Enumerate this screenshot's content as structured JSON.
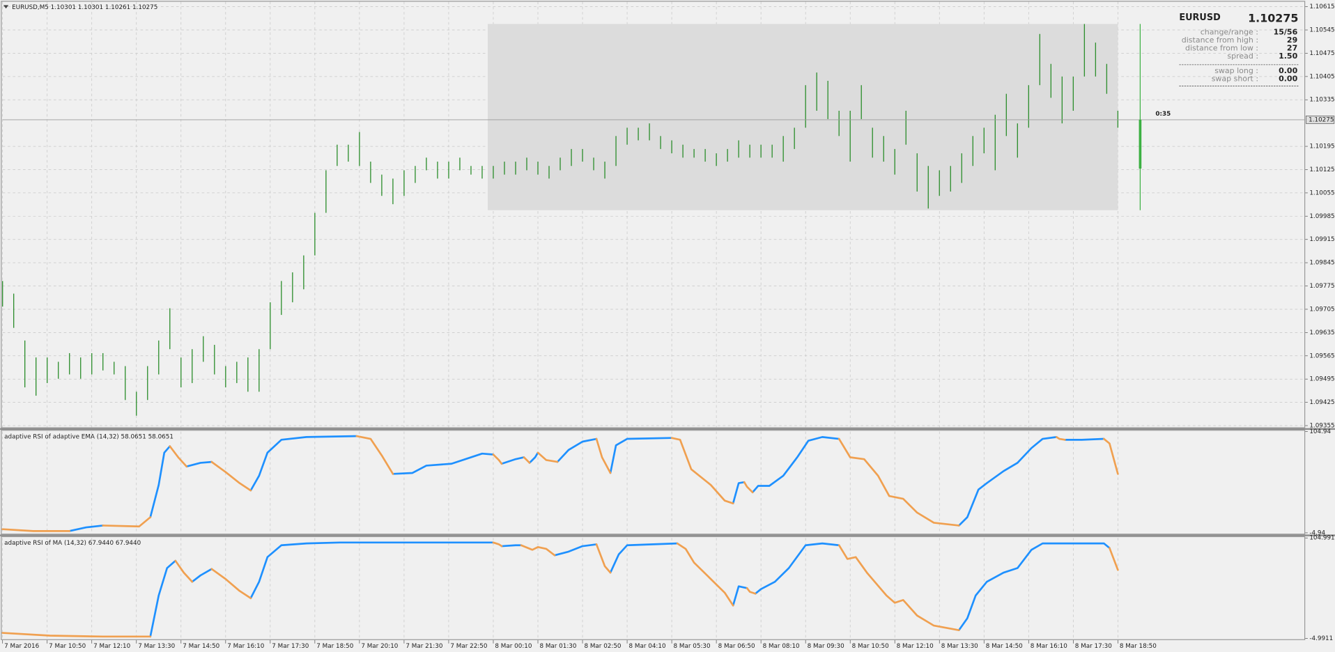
{
  "window_title": "EURUSD,M5 1.10301 1.10301 1.10261 1.10275",
  "info_panel": {
    "symbol": "EURUSD",
    "symbol_color": "#3cb371",
    "rows": [
      {
        "label": "change/range :",
        "value": "15/56",
        "color": "#f08c00"
      },
      {
        "label": "distance from high :",
        "value": "29",
        "color": "#3cb371"
      },
      {
        "label": "distance from low :",
        "value": "27",
        "color": "#3cb371"
      },
      {
        "label": "spread :",
        "value": "1.50",
        "color": "#3cb371"
      },
      {
        "label": "swap long :",
        "value": "0.00",
        "color": "#3cb371"
      },
      {
        "label": "swap short :",
        "value": "0.00",
        "color": "#3cb371"
      }
    ]
  },
  "chart_data": [
    {
      "type": "hilo",
      "color": "#2f8f2f",
      "grid": true,
      "xlim": [
        0,
        467
      ],
      "ylim": [
        1.0935,
        1.1063
      ],
      "yticks": [
        1.10615,
        1.10545,
        1.10475,
        1.10405,
        1.10335,
        1.10195,
        1.10125,
        1.10055,
        1.09985,
        1.09915,
        1.09845,
        1.09775,
        1.09705,
        1.09635,
        1.09565,
        1.09495,
        1.09425,
        1.09355
      ],
      "current_price": 1.10275,
      "timer": "0:35",
      "range_box": {
        "start": 174,
        "end": 400,
        "low": 1.10003,
        "high": 1.10563,
        "color": "#dcdcdc"
      },
      "range_line": {
        "x": 408,
        "low": 1.10003,
        "high": 1.10563,
        "bar_low": 1.10128,
        "bar_high": 1.10275,
        "color": "#3cb043"
      },
      "x": [
        0,
        4,
        8,
        12,
        16,
        20,
        24,
        28,
        32,
        36,
        40,
        44,
        48,
        52,
        56,
        60,
        64,
        68,
        72,
        76,
        80,
        84,
        88,
        92,
        96,
        100,
        104,
        108,
        112,
        116,
        120,
        124,
        128,
        132,
        136,
        140,
        144,
        148,
        152,
        156,
        160,
        164,
        168,
        172,
        176,
        180,
        184,
        188,
        192,
        196,
        200,
        204,
        208,
        212,
        216,
        220,
        224,
        228,
        232,
        236,
        240,
        244,
        248,
        252,
        256,
        260,
        264,
        268,
        272,
        276,
        280,
        284,
        288,
        292,
        296,
        300,
        304,
        308,
        312,
        316,
        320,
        324,
        328,
        332,
        336,
        340,
        344,
        348,
        352,
        356,
        360,
        364,
        368,
        372,
        376,
        380,
        384,
        388,
        392,
        396,
        400
      ],
      "high": [
        1.0979,
        1.09752,
        1.09611,
        1.0956,
        1.0956,
        1.09547,
        1.09573,
        1.0956,
        1.09573,
        1.09573,
        1.09547,
        1.09534,
        1.09457,
        1.09534,
        1.09611,
        1.09708,
        1.0956,
        1.09585,
        1.09624,
        1.09598,
        1.09534,
        1.09547,
        1.0956,
        1.09585,
        1.09726,
        1.0979,
        1.09816,
        1.09867,
        1.09995,
        1.10123,
        1.102,
        1.102,
        1.10238,
        1.10149,
        1.1011,
        1.10098,
        1.10123,
        1.10136,
        1.10161,
        1.10149,
        1.10149,
        1.10161,
        1.10136,
        1.10136,
        1.10136,
        1.10149,
        1.10149,
        1.10161,
        1.10149,
        1.10136,
        1.10161,
        1.10187,
        1.10187,
        1.10161,
        1.10149,
        1.10226,
        1.10251,
        1.10251,
        1.10264,
        1.10226,
        1.10213,
        1.102,
        1.10187,
        1.10187,
        1.10174,
        1.10187,
        1.10213,
        1.102,
        1.102,
        1.102,
        1.10226,
        1.10251,
        1.10379,
        1.10417,
        1.10392,
        1.10302,
        1.10302,
        1.10379,
        1.10251,
        1.10226,
        1.10187,
        1.10302,
        1.10174,
        1.10136,
        1.10123,
        1.10136,
        1.10174,
        1.10226,
        1.10251,
        1.1029,
        1.10353,
        1.10264,
        1.10379,
        1.10533,
        1.10443,
        1.10405,
        1.10405,
        1.10563,
        1.10507,
        1.10443,
        1.10302
      ],
      "low": [
        1.09713,
        1.09649,
        1.0947,
        1.09445,
        1.09483,
        1.09496,
        1.09509,
        1.09496,
        1.09509,
        1.09521,
        1.09509,
        1.09432,
        1.09385,
        1.09432,
        1.09509,
        1.09585,
        1.0947,
        1.09483,
        1.09547,
        1.09509,
        1.0947,
        1.09483,
        1.09457,
        1.09457,
        1.09585,
        1.09688,
        1.09726,
        1.09765,
        1.09867,
        1.09995,
        1.10136,
        1.10149,
        1.10136,
        1.10085,
        1.10046,
        1.10021,
        1.10046,
        1.10085,
        1.10123,
        1.10098,
        1.10098,
        1.10123,
        1.1011,
        1.10098,
        1.10098,
        1.1011,
        1.1011,
        1.10123,
        1.1011,
        1.10098,
        1.10123,
        1.10136,
        1.10149,
        1.10123,
        1.10098,
        1.10136,
        1.102,
        1.10213,
        1.10213,
        1.10187,
        1.10174,
        1.10161,
        1.10161,
        1.10149,
        1.10136,
        1.10149,
        1.10161,
        1.10161,
        1.10161,
        1.10161,
        1.10149,
        1.10187,
        1.10251,
        1.10302,
        1.10277,
        1.10226,
        1.10149,
        1.10277,
        1.10161,
        1.10149,
        1.1011,
        1.102,
        1.10059,
        1.10008,
        1.10046,
        1.10059,
        1.10085,
        1.10136,
        1.10174,
        1.10123,
        1.10226,
        1.10161,
        1.10251,
        1.10379,
        1.10341,
        1.10264,
        1.10302,
        1.10405,
        1.10405,
        1.10353,
        1.10251
      ]
    },
    {
      "type": "line",
      "title": "adaptive RSI of adaptive EMA (14,32) 58.0651 58.0651",
      "grid": true,
      "xlim": [
        0,
        467
      ],
      "ylim": [
        -4.94,
        104.94
      ],
      "yticks": [
        104.94,
        -4.94
      ],
      "x": [
        0,
        11,
        24,
        30,
        36,
        49,
        53,
        56,
        58,
        60,
        63,
        66,
        71,
        75,
        80,
        85,
        89,
        92,
        95,
        100,
        109,
        127,
        132,
        136,
        140,
        147,
        152,
        161,
        167,
        172,
        176,
        178,
        179,
        184,
        187,
        188,
        189,
        191,
        192,
        195,
        199,
        203,
        208,
        213,
        215,
        218,
        220,
        224,
        240,
        243,
        247,
        254,
        259,
        262,
        264,
        266,
        267,
        269,
        271,
        275,
        280,
        285,
        289,
        294,
        300,
        304,
        309,
        314,
        318,
        323,
        328,
        334,
        343,
        346,
        350,
        353,
        359,
        364,
        369,
        373,
        378,
        379,
        381,
        387,
        395,
        397,
        400
      ],
      "series": [
        {
          "color": "#1e90ff",
          "values": [
            null,
            null,
            -3,
            1,
            3,
            null,
            12,
            47,
            82,
            89,
            null,
            67,
            71,
            72,
            null,
            null,
            41,
            57,
            82,
            96,
            99,
            100,
            null,
            null,
            59,
            60,
            68,
            70,
            76,
            81,
            80,
            null,
            70,
            75,
            77,
            null,
            71,
            77,
            82,
            null,
            72,
            85,
            94,
            97,
            null,
            60,
            90,
            97,
            98,
            null,
            null,
            null,
            null,
            27,
            49,
            50,
            null,
            39,
            46,
            46,
            57,
            77,
            95,
            99,
            97,
            null,
            null,
            null,
            null,
            null,
            null,
            null,
            3,
            12,
            42,
            49,
            62,
            71,
            87,
            97,
            99,
            null,
            96,
            96,
            97,
            null,
            null
          ]
        },
        {
          "color": "#f0a050",
          "values": [
            -1,
            -3,
            -3,
            null,
            3,
            2,
            12,
            null,
            null,
            89,
            77,
            67,
            null,
            72,
            61,
            49,
            41,
            null,
            null,
            null,
            null,
            100,
            97,
            79,
            59,
            null,
            null,
            null,
            null,
            null,
            80,
            74,
            70,
            null,
            77,
            74,
            71,
            null,
            82,
            74,
            72,
            null,
            null,
            97,
            77,
            60,
            null,
            null,
            98,
            96,
            64,
            47,
            30,
            27,
            null,
            50,
            45,
            39,
            null,
            null,
            null,
            null,
            null,
            null,
            97,
            77,
            75,
            57,
            35,
            32,
            17,
            6,
            3,
            null,
            null,
            null,
            null,
            null,
            null,
            null,
            99,
            97,
            96,
            null,
            97,
            92,
            59
          ]
        }
      ]
    },
    {
      "type": "line",
      "title": "adaptive RSI of MA (14,32) 67.9440 67.9440",
      "grid": true,
      "xlim": [
        0,
        467
      ],
      "ylim": [
        -4.9911,
        104.9911
      ],
      "yticks": [
        104.9911,
        -4.9911
      ],
      "x": [
        0,
        17,
        36,
        53,
        56,
        59,
        62,
        65,
        68,
        71,
        75,
        80,
        85,
        89,
        92,
        95,
        100,
        109,
        121,
        176,
        178,
        179,
        184,
        186,
        190,
        192,
        195,
        198,
        203,
        208,
        213,
        216,
        218,
        221,
        224,
        242,
        245,
        248,
        254,
        259,
        262,
        264,
        267,
        268,
        270,
        272,
        277,
        282,
        288,
        294,
        300,
        303,
        306,
        310,
        317,
        320,
        323,
        328,
        334,
        343,
        346,
        349,
        353,
        359,
        364,
        369,
        373,
        381,
        395,
        397,
        400
      ],
      "series": [
        {
          "color": "#1e90ff",
          "values": [
            null,
            null,
            null,
            -3,
            42,
            72,
            80,
            null,
            57,
            64,
            71,
            null,
            null,
            39,
            57,
            84,
            97,
            99,
            100,
            100,
            null,
            96,
            97,
            97,
            null,
            null,
            null,
            86,
            90,
            96,
            98,
            null,
            67,
            87,
            97,
            99,
            null,
            null,
            null,
            null,
            31,
            52,
            50,
            null,
            44,
            49,
            57,
            72,
            97,
            99,
            97,
            null,
            null,
            null,
            null,
            null,
            null,
            null,
            null,
            4,
            17,
            42,
            57,
            67,
            72,
            92,
            99,
            99,
            99,
            94,
            null
          ]
        },
        {
          "color": "#f0a050",
          "values": [
            1,
            -2,
            -3,
            -3,
            null,
            null,
            80,
            67,
            57,
            null,
            71,
            60,
            47,
            39,
            null,
            null,
            null,
            null,
            null,
            100,
            98,
            96,
            null,
            97,
            92,
            95,
            93,
            86,
            null,
            null,
            98,
            74,
            67,
            null,
            null,
            99,
            93,
            78,
            60,
            45,
            31,
            null,
            50,
            46,
            44,
            null,
            null,
            null,
            null,
            null,
            97,
            82,
            84,
            67,
            42,
            34,
            37,
            20,
            9,
            4,
            null,
            null,
            null,
            null,
            null,
            null,
            null,
            null,
            null,
            94,
            70
          ]
        }
      ],
      "xticks": [
        {
          "value": 0,
          "label": "7 Mar 2016"
        },
        {
          "value": 16,
          "label": "7 Mar 10:50"
        },
        {
          "value": 32,
          "label": "7 Mar 12:10"
        },
        {
          "value": 48,
          "label": "7 Mar 13:30"
        },
        {
          "value": 64,
          "label": "7 Mar 14:50"
        },
        {
          "value": 80,
          "label": "7 Mar 16:10"
        },
        {
          "value": 96,
          "label": "7 Mar 17:30"
        },
        {
          "value": 112,
          "label": "7 Mar 18:50"
        },
        {
          "value": 128,
          "label": "7 Mar 20:10"
        },
        {
          "value": 144,
          "label": "7 Mar 21:30"
        },
        {
          "value": 160,
          "label": "7 Mar 22:50"
        },
        {
          "value": 176,
          "label": "8 Mar 00:10"
        },
        {
          "value": 192,
          "label": "8 Mar 01:30"
        },
        {
          "value": 208,
          "label": "8 Mar 02:50"
        },
        {
          "value": 224,
          "label": "8 Mar 04:10"
        },
        {
          "value": 240,
          "label": "8 Mar 05:30"
        },
        {
          "value": 256,
          "label": "8 Mar 06:50"
        },
        {
          "value": 272,
          "label": "8 Mar 08:10"
        },
        {
          "value": 288,
          "label": "8 Mar 09:30"
        },
        {
          "value": 304,
          "label": "8 Mar 10:50"
        },
        {
          "value": 320,
          "label": "8 Mar 12:10"
        },
        {
          "value": 336,
          "label": "8 Mar 13:30"
        },
        {
          "value": 352,
          "label": "8 Mar 14:50"
        },
        {
          "value": 368,
          "label": "8 Mar 16:10"
        },
        {
          "value": 384,
          "label": "8 Mar 17:30"
        },
        {
          "value": 400,
          "label": "8 Mar 18:50"
        }
      ]
    }
  ]
}
